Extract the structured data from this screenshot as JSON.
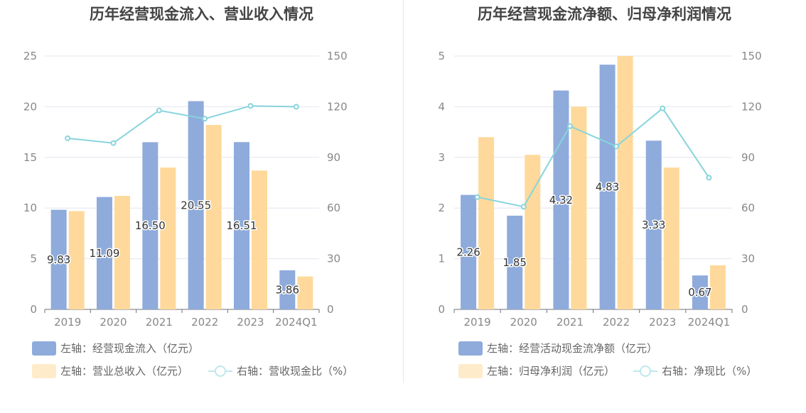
{
  "colors": {
    "bar_primary": "#8eabdb",
    "bar_secondary": "#fed99b",
    "line": "#88d4dc",
    "grid": "#e3e6f0",
    "axis": "#6e7079",
    "tick_text": "#888888",
    "label_text": "#333333"
  },
  "chart_data": [
    {
      "type": "bar",
      "title": "历年经营现金流入、营业收入情况",
      "categories": [
        "2019",
        "2020",
        "2021",
        "2022",
        "2023",
        "2024Q1"
      ],
      "y_left": {
        "ylim": [
          0,
          25
        ],
        "ticks": [
          "0",
          "5",
          "10",
          "15",
          "20",
          "25"
        ]
      },
      "y_right": {
        "ylim": [
          0,
          150
        ],
        "ticks": [
          "0",
          "30",
          "60",
          "90",
          "120",
          "150"
        ]
      },
      "series": [
        {
          "name": "左轴：经营现金流入（亿元）",
          "type": "bar",
          "axis": "left",
          "values": [
            9.83,
            11.09,
            16.5,
            20.55,
            16.51,
            3.86
          ],
          "labels": [
            "9.83",
            "11.09",
            "16.50",
            "20.55",
            "16.51",
            "3.86"
          ]
        },
        {
          "name": "左轴：营业总收入（亿元）",
          "type": "bar",
          "axis": "left",
          "values": [
            9.7,
            11.2,
            14.0,
            18.2,
            13.7,
            3.25
          ]
        },
        {
          "name": "右轴：营收现金比（%）",
          "type": "line",
          "axis": "right",
          "values": [
            101.3,
            98.5,
            117.8,
            112.9,
            120.5,
            120.0
          ]
        }
      ]
    },
    {
      "type": "bar",
      "title": "历年经营现金流净额、归母净利润情况",
      "categories": [
        "2019",
        "2020",
        "2021",
        "2022",
        "2023",
        "2024Q1"
      ],
      "y_left": {
        "ylim": [
          0,
          5
        ],
        "ticks": [
          "0",
          "1",
          "2",
          "3",
          "4",
          "5"
        ]
      },
      "y_right": {
        "ylim": [
          0,
          150
        ],
        "ticks": [
          "0",
          "30",
          "60",
          "90",
          "120",
          "150"
        ]
      },
      "series": [
        {
          "name": "左轴：经营活动现金流净额（亿元）",
          "type": "bar",
          "axis": "left",
          "values": [
            2.26,
            1.85,
            4.32,
            4.83,
            3.33,
            0.67
          ],
          "labels": [
            "2.26",
            "1.85",
            "4.32",
            "4.83",
            "3.33",
            "0.67"
          ]
        },
        {
          "name": "左轴：归母净利润（亿元）",
          "type": "bar",
          "axis": "left",
          "values": [
            3.4,
            3.05,
            4.0,
            5.0,
            2.8,
            0.87
          ]
        },
        {
          "name": "右轴：净现比（%）",
          "type": "line",
          "axis": "right",
          "values": [
            66.5,
            60.8,
            108.5,
            96.5,
            119.0,
            78.0
          ]
        }
      ]
    }
  ]
}
